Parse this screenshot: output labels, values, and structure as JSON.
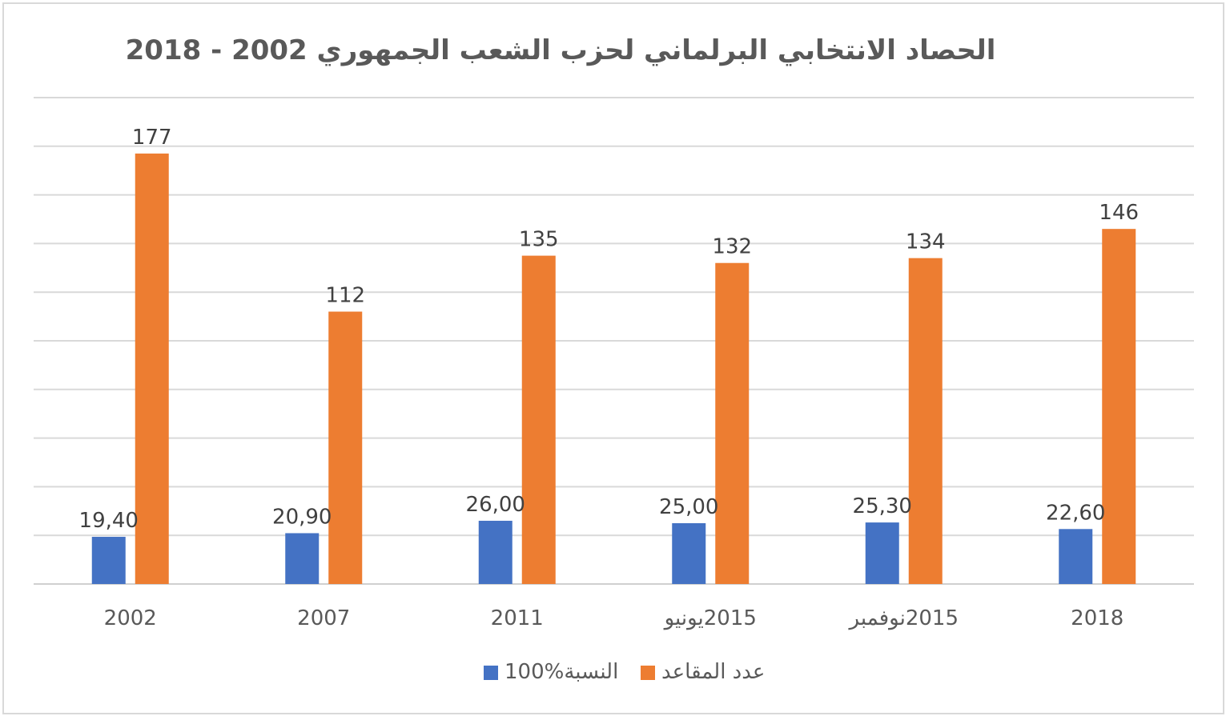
{
  "chart_data": {
    "type": "bar",
    "title": "الحصاد الانتخابي البرلماني لحزب الشعب الجمهوري 2002 - 2018",
    "categories": [
      "2002",
      "2007",
      "2011",
      "2015يونيو",
      "2015نوفمبر",
      "2018"
    ],
    "series": [
      {
        "name": "النسبة%100",
        "color": "#4472c4",
        "values": [
          19.4,
          20.9,
          26.0,
          25.0,
          25.3,
          22.6
        ],
        "labels": [
          "19,40",
          "20,90",
          "26,00",
          "25,00",
          "25,30",
          "22,60"
        ]
      },
      {
        "name": "عدد المقاعد",
        "color": "#ed7d31",
        "values": [
          177,
          112,
          135,
          132,
          134,
          146
        ],
        "labels": [
          "177",
          "112",
          "135",
          "132",
          "134",
          "146"
        ]
      }
    ],
    "ylim": [
      0,
      200
    ],
    "grid": true,
    "legend": "bottom"
  }
}
